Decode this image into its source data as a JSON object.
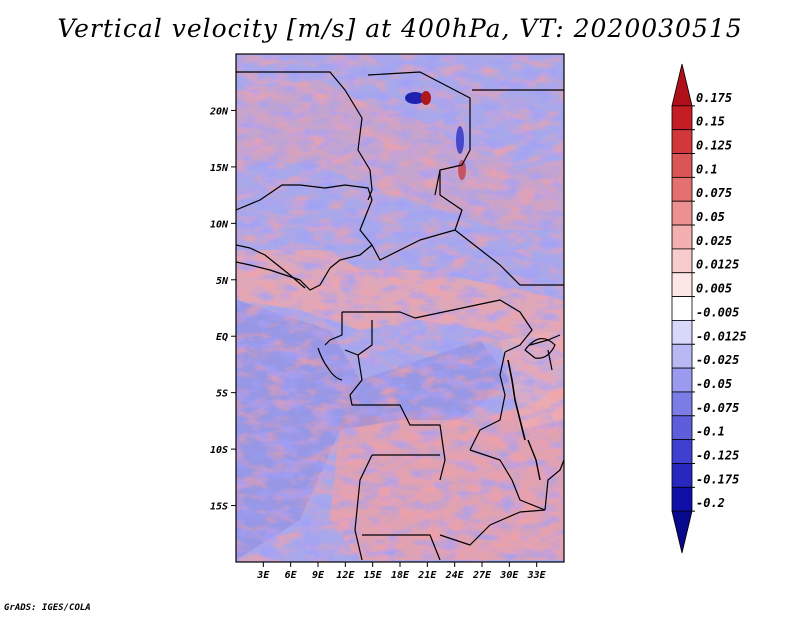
{
  "title": "Vertical velocity [m/s] at 400hPa, VT: 2020030515",
  "credit": "GrADS: IGES/COLA",
  "chart_data": {
    "type": "heatmap",
    "field": "Vertical velocity",
    "units": "m/s",
    "level": "400hPa",
    "valid_time": "2020030515",
    "lon_range": [
      0,
      36
    ],
    "lat_range": [
      -20,
      25
    ],
    "x_ticks": [
      "3E",
      "6E",
      "9E",
      "12E",
      "15E",
      "18E",
      "21E",
      "24E",
      "27E",
      "30E",
      "33E"
    ],
    "x_tick_values": [
      3,
      6,
      9,
      12,
      15,
      18,
      21,
      24,
      27,
      30,
      33
    ],
    "y_ticks": [
      "20N",
      "15N",
      "10N",
      "5N",
      "EQ",
      "5S",
      "10S",
      "15S"
    ],
    "y_tick_values": [
      20,
      15,
      10,
      5,
      0,
      -5,
      -10,
      -15
    ],
    "colorbar": {
      "labels": [
        "0.175",
        "0.15",
        "0.125",
        "0.1",
        "0.075",
        "0.05",
        "0.025",
        "0.0125",
        "0.005",
        "-0.005",
        "-0.0125",
        "-0.025",
        "-0.05",
        "-0.075",
        "-0.1",
        "-0.125",
        "-0.175",
        "-0.2"
      ],
      "colors": [
        "#b0101a",
        "#c41e24",
        "#d2383a",
        "#dc5555",
        "#e47070",
        "#ec9090",
        "#f4b0b0",
        "#f8cccc",
        "#fce6e6",
        "#ffffff",
        "#d8d8fa",
        "#b8b8f4",
        "#9a9aee",
        "#7c7ce6",
        "#5e5edc",
        "#4040d0",
        "#2828c0",
        "#1010a8",
        "#08088c"
      ],
      "extend": "both"
    }
  }
}
